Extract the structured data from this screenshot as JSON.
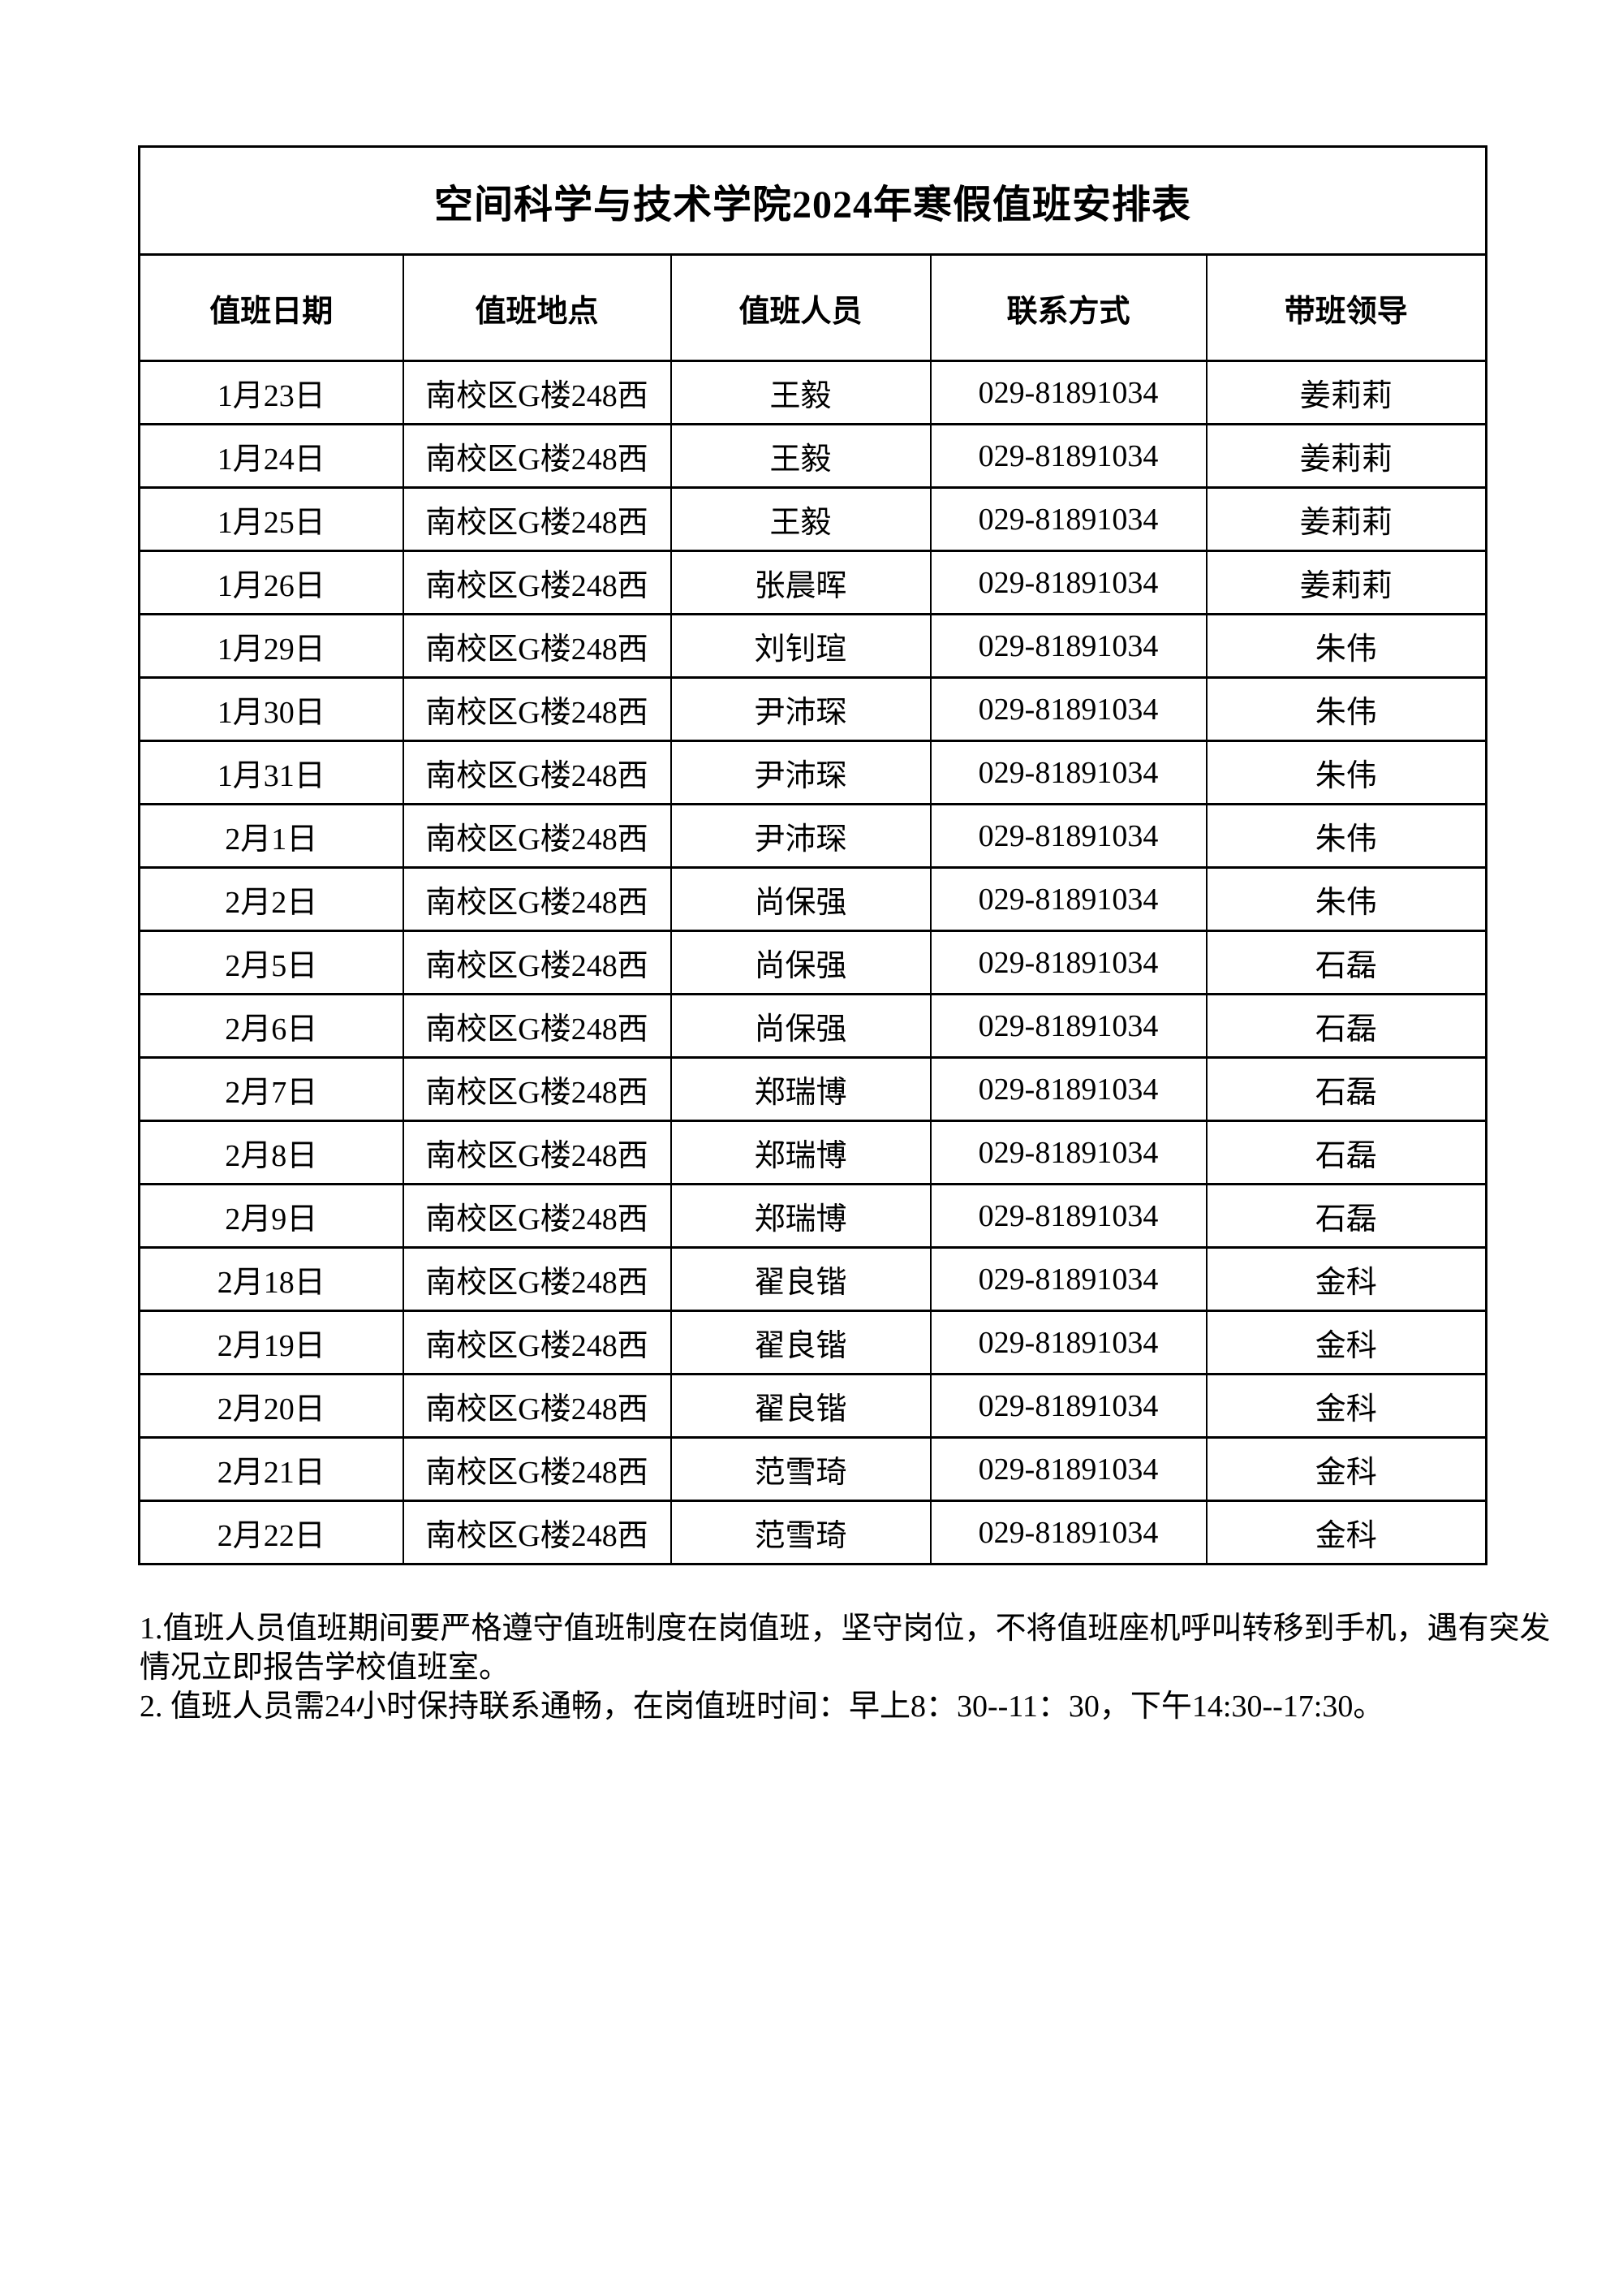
{
  "table": {
    "title": "空间科学与技术学院2024年寒假值班安排表",
    "headers": [
      "值班日期",
      "值班地点",
      "值班人员",
      "联系方式",
      "带班领导"
    ],
    "rows": [
      [
        "1月23日",
        "南校区G楼248西",
        "王毅",
        "029-81891034",
        "姜莉莉"
      ],
      [
        "1月24日",
        "南校区G楼248西",
        "王毅",
        "029-81891034",
        "姜莉莉"
      ],
      [
        "1月25日",
        "南校区G楼248西",
        "王毅",
        "029-81891034",
        "姜莉莉"
      ],
      [
        "1月26日",
        "南校区G楼248西",
        "张晨晖",
        "029-81891034",
        "姜莉莉"
      ],
      [
        "1月29日",
        "南校区G楼248西",
        "刘钊瑄",
        "029-81891034",
        "朱伟"
      ],
      [
        "1月30日",
        "南校区G楼248西",
        "尹沛琛",
        "029-81891034",
        "朱伟"
      ],
      [
        "1月31日",
        "南校区G楼248西",
        "尹沛琛",
        "029-81891034",
        "朱伟"
      ],
      [
        "2月1日",
        "南校区G楼248西",
        "尹沛琛",
        "029-81891034",
        "朱伟"
      ],
      [
        "2月2日",
        "南校区G楼248西",
        "尚保强",
        "029-81891034",
        "朱伟"
      ],
      [
        "2月5日",
        "南校区G楼248西",
        "尚保强",
        "029-81891034",
        "石磊"
      ],
      [
        "2月6日",
        "南校区G楼248西",
        "尚保强",
        "029-81891034",
        "石磊"
      ],
      [
        "2月7日",
        "南校区G楼248西",
        "郑瑞博",
        "029-81891034",
        "石磊"
      ],
      [
        "2月8日",
        "南校区G楼248西",
        "郑瑞博",
        "029-81891034",
        "石磊"
      ],
      [
        "2月9日",
        "南校区G楼248西",
        "郑瑞博",
        "029-81891034",
        "石磊"
      ],
      [
        "2月18日",
        "南校区G楼248西",
        "翟良锴",
        "029-81891034",
        "金科"
      ],
      [
        "2月19日",
        "南校区G楼248西",
        "翟良锴",
        "029-81891034",
        "金科"
      ],
      [
        "2月20日",
        "南校区G楼248西",
        "翟良锴",
        "029-81891034",
        "金科"
      ],
      [
        "2月21日",
        "南校区G楼248西",
        "范雪琦",
        "029-81891034",
        "金科"
      ],
      [
        "2月22日",
        "南校区G楼248西",
        "范雪琦",
        "029-81891034",
        "金科"
      ]
    ]
  },
  "notes": {
    "lines": [
      "1.值班人员值班期间要严格遵守值班制度在岗值班，坚守岗位，不将值班座机呼叫转移到手机，遇有突发",
      "情况立即报告学校值班室。",
      "2. 值班人员需24小时保持联系通畅，在岗值班时间：早上8：30--11：30，下午14:30--17:30。"
    ]
  },
  "colors": {
    "text": "#000000",
    "background": "#ffffff",
    "border": "#000000"
  }
}
